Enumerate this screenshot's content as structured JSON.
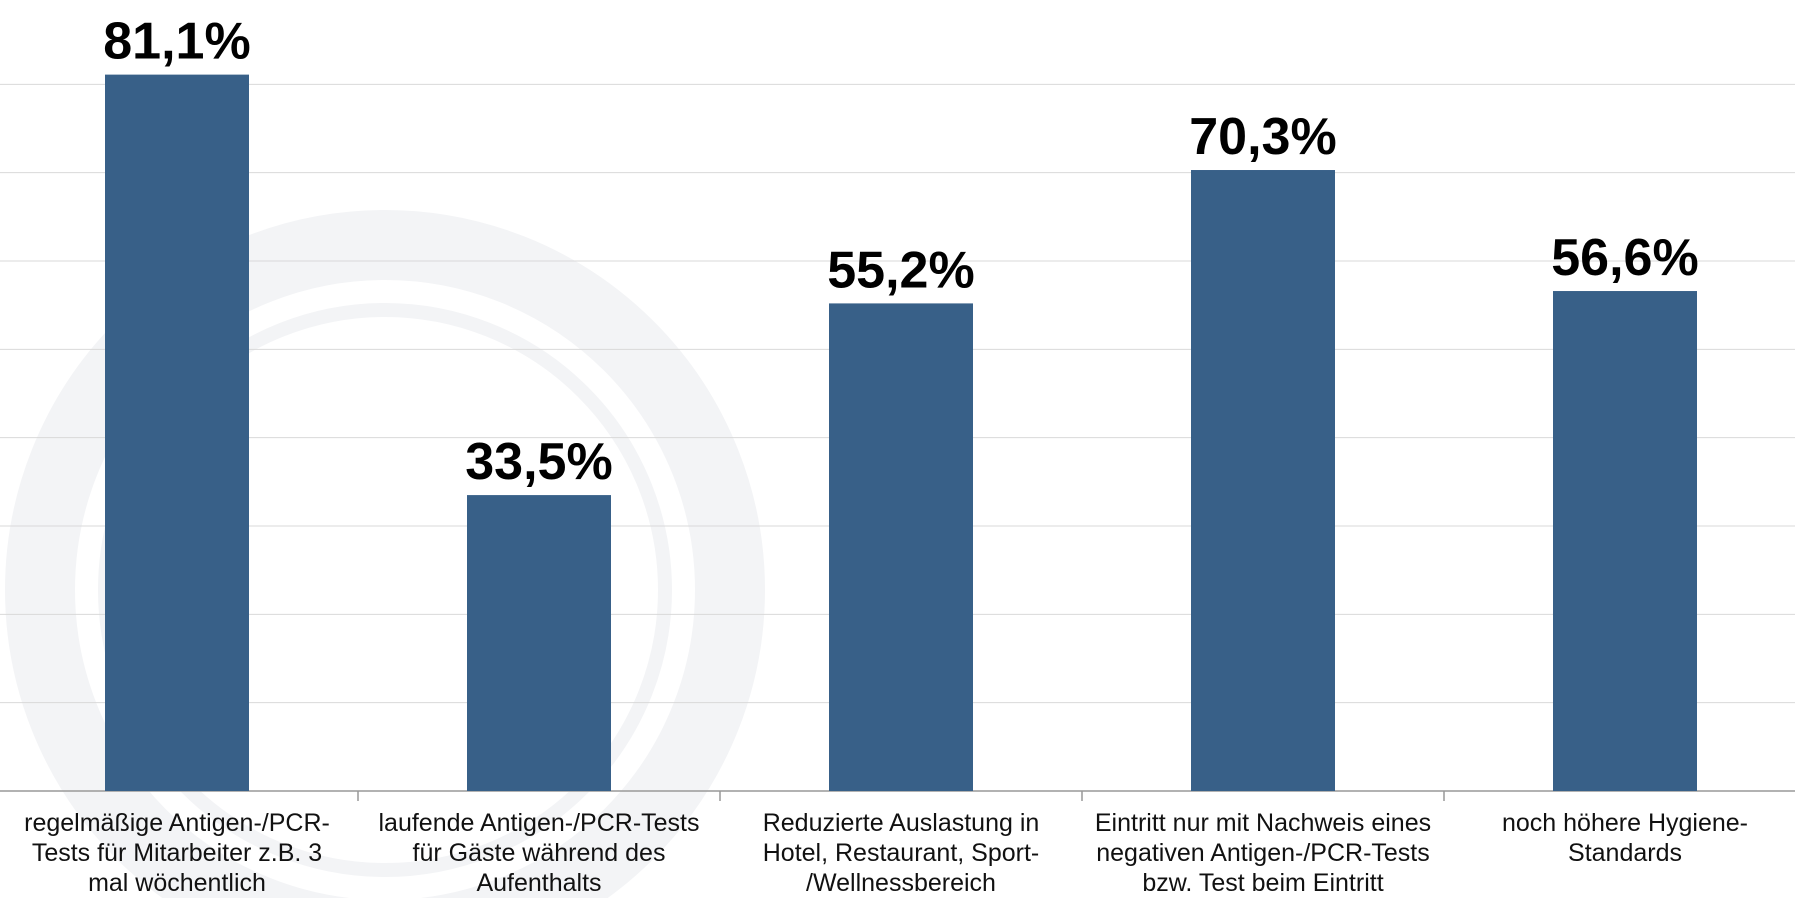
{
  "chart_data": {
    "type": "bar",
    "categories": [
      "regelmäßige Antigen-/PCR-\nTests für Mitarbeiter z.B. 3\nmal wöchentlich",
      "laufende Antigen-/PCR-Tests\nfür Gäste während des\nAufenthalts",
      "Reduzierte Auslastung in\nHotel, Restaurant, Sport-\n/Wellnessbereich",
      "Eintritt nur mit Nachweis eines\nnegativen Antigen-/PCR-Tests\nbzw. Test beim Eintritt",
      "noch höhere Hygiene-\nStandards"
    ],
    "values": [
      81.1,
      33.5,
      55.2,
      70.3,
      56.6
    ],
    "value_labels": [
      "81,1%",
      "33,5%",
      "55,2%",
      "70,3%",
      "56,6%"
    ],
    "color": "#386088",
    "ylim": [
      0,
      90
    ],
    "yticks": [
      0,
      10,
      20,
      30,
      40,
      50,
      60,
      70,
      80
    ],
    "grid": true
  }
}
